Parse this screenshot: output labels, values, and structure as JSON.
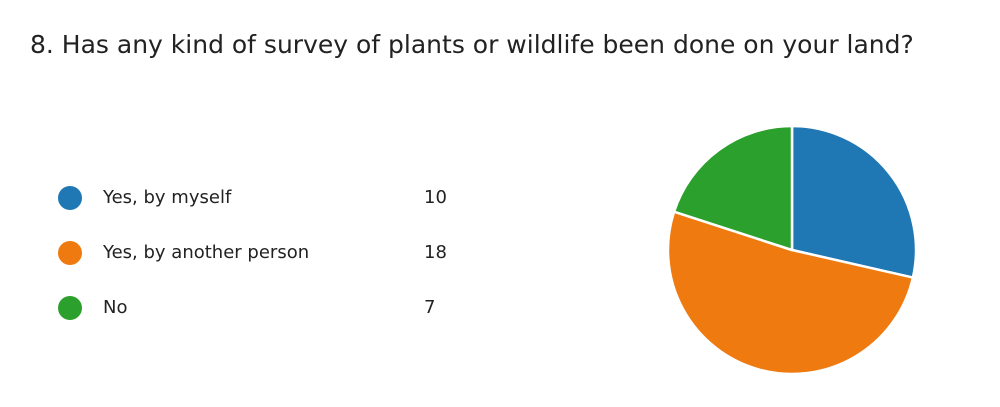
{
  "question": {
    "title": "8.  Has any kind of survey of plants or wildlife been done on your land?"
  },
  "chart_data": {
    "type": "pie",
    "categories": [
      "Yes, by myself",
      "Yes, by another person",
      "No"
    ],
    "values": [
      10,
      18,
      7
    ],
    "colors": [
      "#1f77b4",
      "#ee7a10",
      "#2ca02c"
    ],
    "legend_position": "left",
    "start_angle_deg": 0,
    "direction": "clockwise"
  },
  "legend": {
    "items": [
      {
        "label": "Yes, by myself",
        "value": "10",
        "color": "#1f77b4"
      },
      {
        "label": "Yes, by another person",
        "value": "18",
        "color": "#ee7a10"
      },
      {
        "label": "No",
        "value": "7",
        "color": "#2ca02c"
      }
    ]
  }
}
